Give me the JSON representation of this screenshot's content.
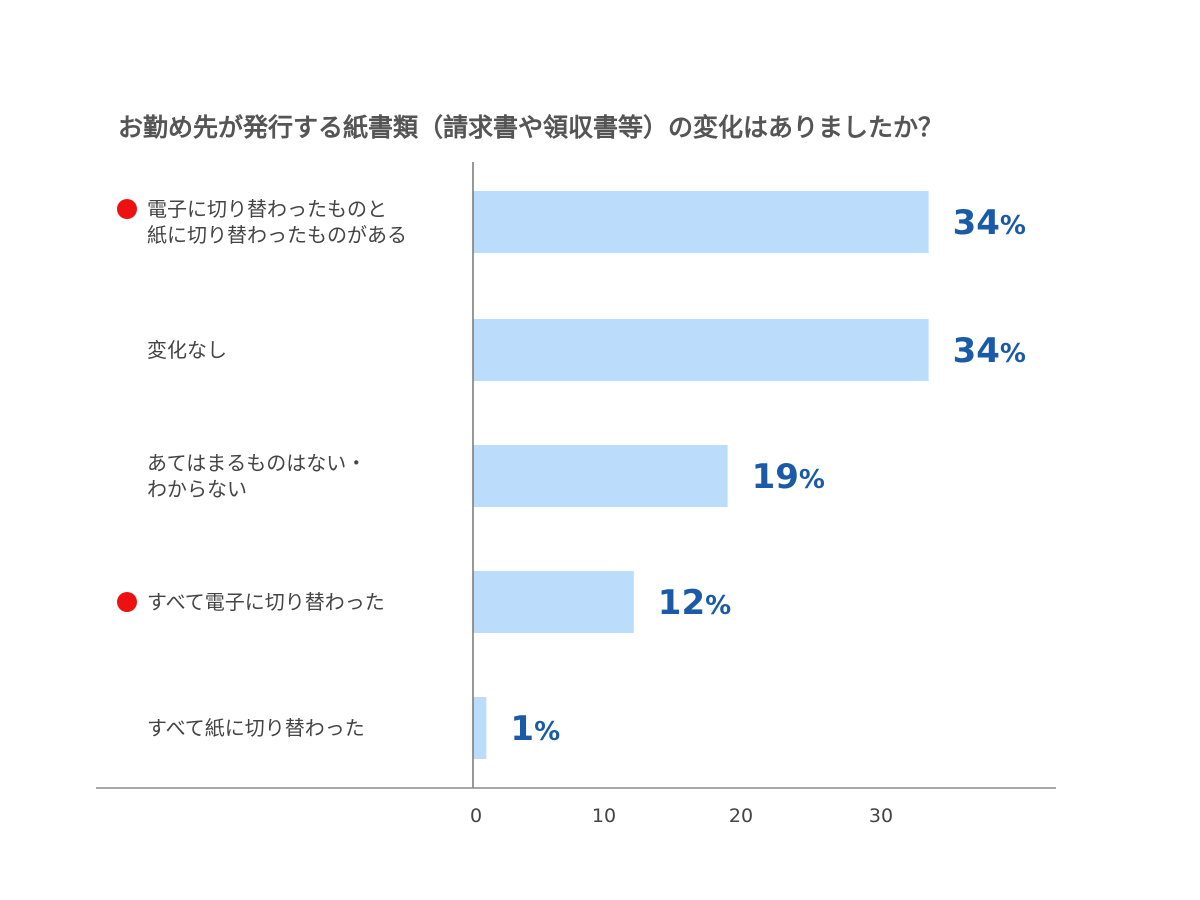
{
  "chart_data": {
    "type": "bar",
    "orientation": "horizontal",
    "title": "お勤め先が発行する紙書類（請求書や領収書等）の変化はありましたか？",
    "categories": [
      [
        "電子に切り替わったものと",
        "紙に切り替わったものがある"
      ],
      [
        "変化なし"
      ],
      [
        "あてはまるものはない・",
        "わからない"
      ],
      [
        "すべて電子に切り替わった"
      ],
      [
        "すべて紙に切り替わった"
      ]
    ],
    "values": [
      34,
      34,
      19,
      12,
      1
    ],
    "value_unit": "%",
    "highlighted": [
      true,
      false,
      false,
      true,
      false
    ],
    "xticks": [
      0,
      10,
      20,
      30
    ],
    "xlim": [
      0,
      42.5
    ],
    "xlabel": "",
    "ylabel": "",
    "grid": false,
    "colors": {
      "bar": "#bcdcfb",
      "marker": "#ee1111",
      "value_label": "#1a5aa6",
      "axis": "#888888"
    }
  }
}
